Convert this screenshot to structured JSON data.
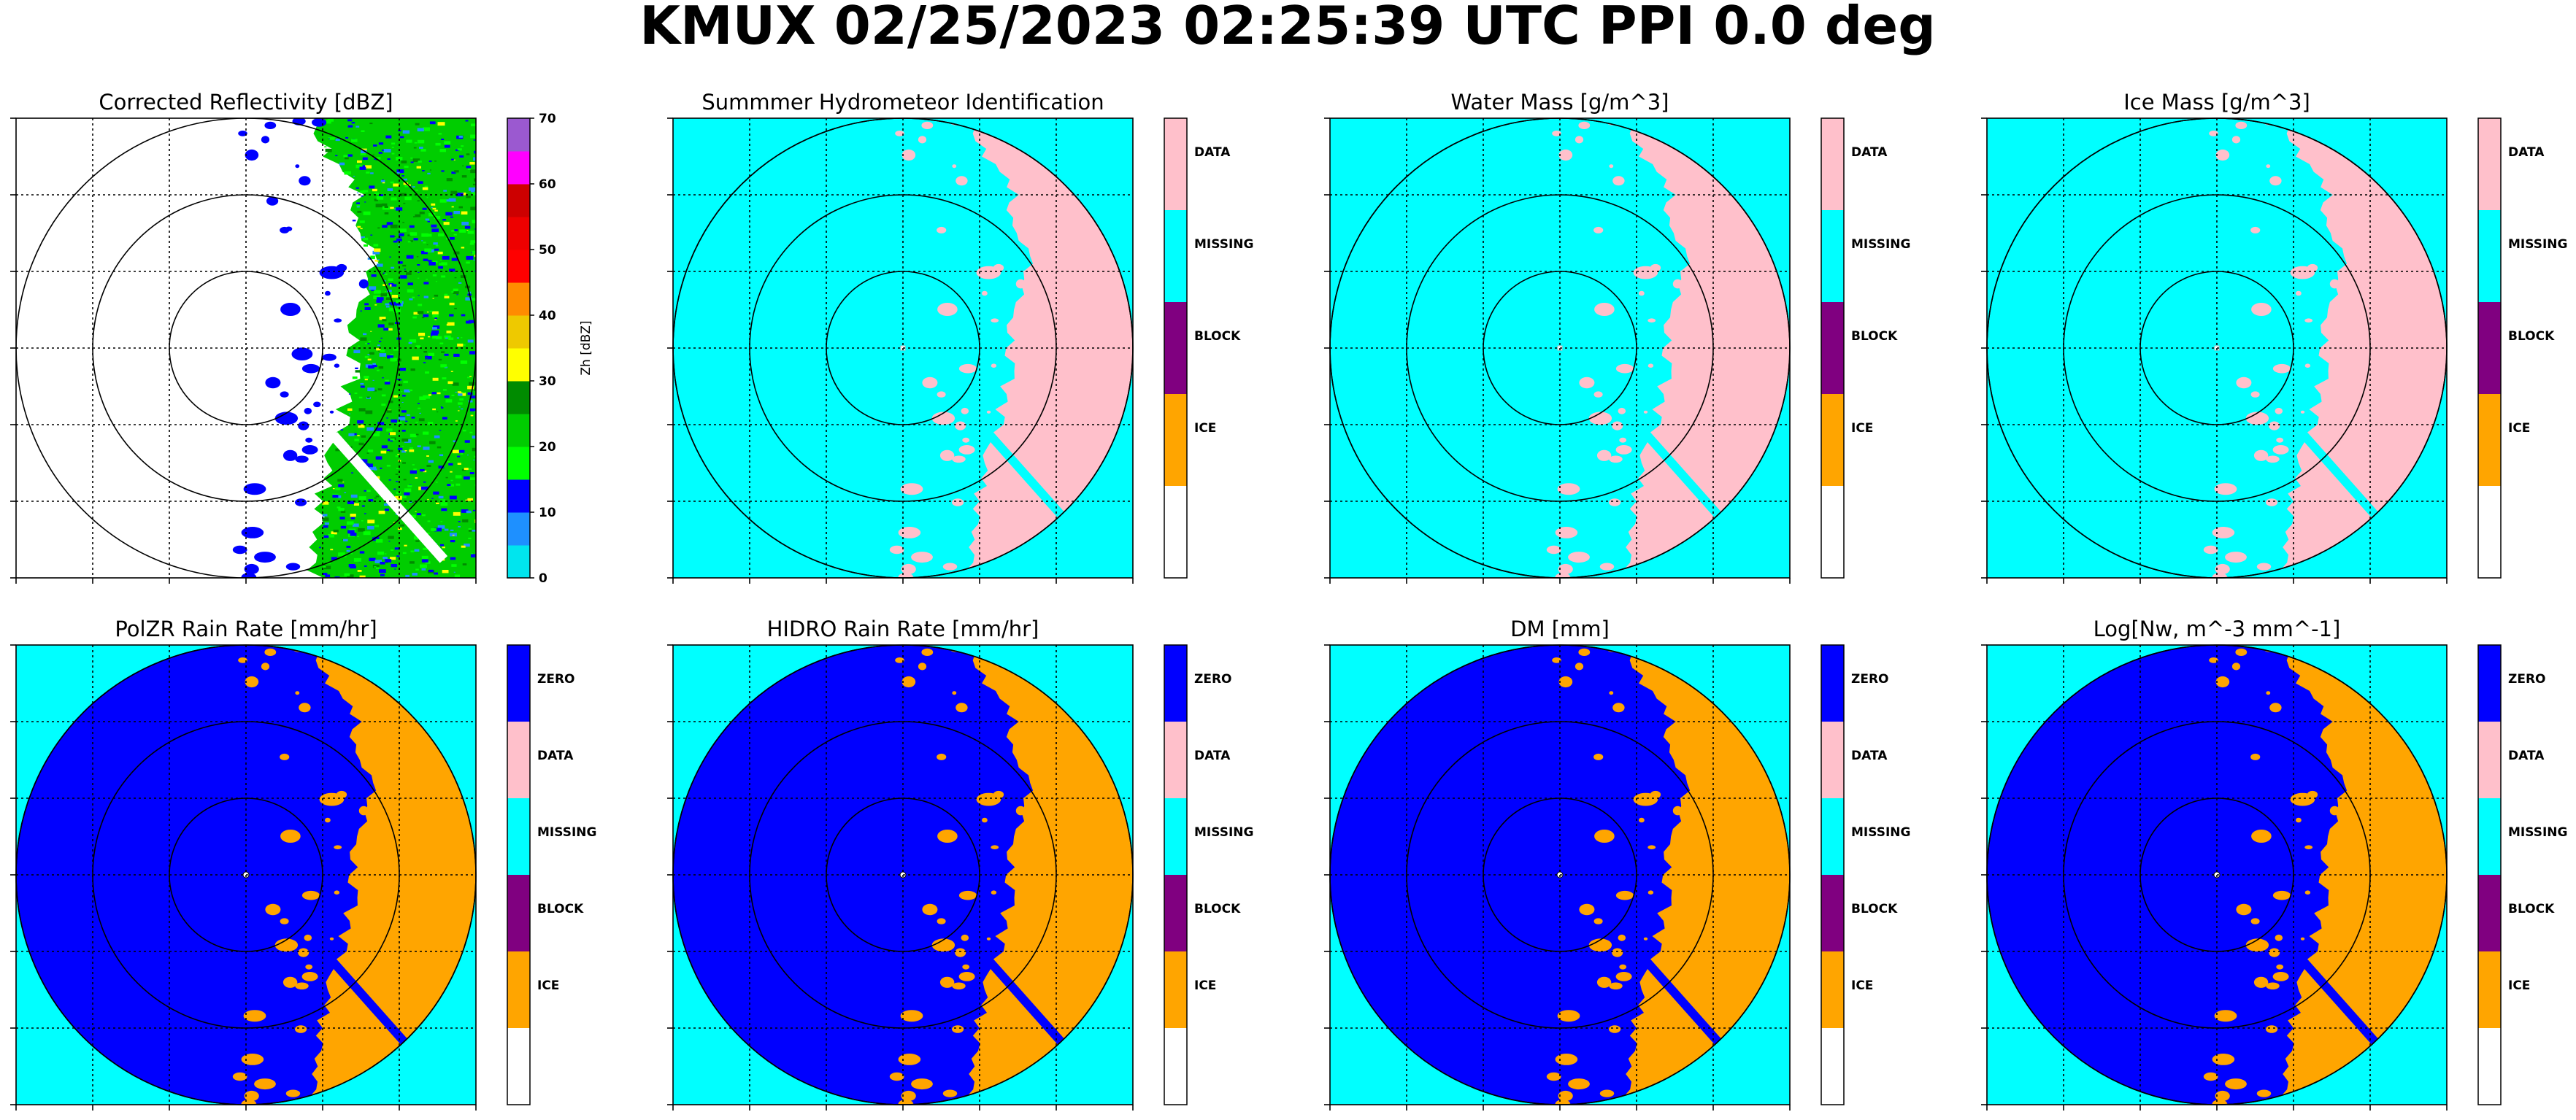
{
  "figure": {
    "title": "KMUX 02/25/2023 02:25:39 UTC PPI 0.0 deg"
  },
  "colors": {
    "cyan": "#00FFFF",
    "pink": "#FFC0CB",
    "blue": "#0000FF",
    "orange": "#FFA500",
    "purple": "#800080",
    "white": "#FFFFFF"
  },
  "chart_data": [
    {
      "type": "heatmap",
      "title": "Corrected Reflectivity [dBZ]",
      "colorbar": {
        "label": "Zh [dBZ]",
        "ticks": [
          "0",
          "10",
          "20",
          "30",
          "40",
          "50",
          "60",
          "70"
        ],
        "range": [
          0,
          70
        ],
        "colors": [
          "#00E5EE",
          "#1E90FF",
          "#0000FF",
          "#00FF00",
          "#00CD00",
          "#008B00",
          "#FFFF00",
          "#EEC900",
          "#FF8C00",
          "#FF0000",
          "#EE0000",
          "#CD0000",
          "#FF00FF",
          "#9B59D0"
        ]
      },
      "range_rings_km": [
        50,
        100,
        150
      ],
      "grid": true
    },
    {
      "type": "heatmap",
      "title": "Summmer Hydrometeor Identification",
      "colorbar": {
        "categories": [
          "DATA",
          "MISSING",
          "BLOCK",
          "ICE",
          ""
        ],
        "colors": [
          "#FFC0CB",
          "#00FFFF",
          "#800080",
          "#FFA500",
          "#FFFFFF"
        ]
      },
      "grid": true
    },
    {
      "type": "heatmap",
      "title": "Water Mass [g/m^3]",
      "colorbar": {
        "categories": [
          "DATA",
          "MISSING",
          "BLOCK",
          "ICE",
          ""
        ],
        "colors": [
          "#FFC0CB",
          "#00FFFF",
          "#800080",
          "#FFA500",
          "#FFFFFF"
        ]
      },
      "grid": true
    },
    {
      "type": "heatmap",
      "title": "Ice Mass [g/m^3]",
      "colorbar": {
        "categories": [
          "DATA",
          "MISSING",
          "BLOCK",
          "ICE",
          ""
        ],
        "colors": [
          "#FFC0CB",
          "#00FFFF",
          "#800080",
          "#FFA500",
          "#FFFFFF"
        ]
      },
      "grid": true
    },
    {
      "type": "heatmap",
      "title": "PolZR Rain Rate [mm/hr]",
      "colorbar": {
        "categories": [
          "ZERO",
          "DATA",
          "MISSING",
          "BLOCK",
          "ICE",
          ""
        ],
        "colors": [
          "#0000FF",
          "#FFC0CB",
          "#00FFFF",
          "#800080",
          "#FFA500",
          "#FFFFFF"
        ]
      },
      "grid": true
    },
    {
      "type": "heatmap",
      "title": "HIDRO Rain Rate [mm/hr]",
      "colorbar": {
        "categories": [
          "ZERO",
          "DATA",
          "MISSING",
          "BLOCK",
          "ICE",
          ""
        ],
        "colors": [
          "#0000FF",
          "#FFC0CB",
          "#00FFFF",
          "#800080",
          "#FFA500",
          "#FFFFFF"
        ]
      },
      "grid": true
    },
    {
      "type": "heatmap",
      "title": "DM [mm]",
      "colorbar": {
        "categories": [
          "ZERO",
          "DATA",
          "MISSING",
          "BLOCK",
          "ICE",
          ""
        ],
        "colors": [
          "#0000FF",
          "#FFC0CB",
          "#00FFFF",
          "#800080",
          "#FFA500",
          "#FFFFFF"
        ]
      },
      "grid": true
    },
    {
      "type": "heatmap",
      "title": "Log[Nw, m^-3 mm^-1]",
      "colorbar": {
        "categories": [
          "ZERO",
          "DATA",
          "MISSING",
          "BLOCK",
          "ICE",
          ""
        ],
        "colors": [
          "#0000FF",
          "#FFC0CB",
          "#00FFFF",
          "#800080",
          "#FFA500",
          "#FFFFFF"
        ]
      },
      "grid": true
    }
  ]
}
